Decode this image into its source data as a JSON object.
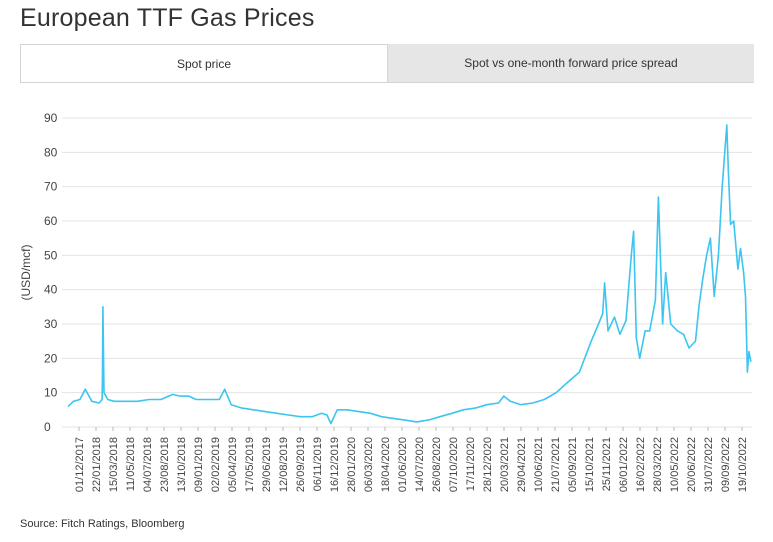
{
  "title": "European TTF Gas Prices",
  "tabs": [
    {
      "label": "Spot price",
      "active": true
    },
    {
      "label": "Spot vs one-month forward price spread",
      "active": false
    }
  ],
  "source": "Source: Fitch Ratings, Bloomberg",
  "colors": {
    "line": "#3cc5f0",
    "grid": "#e3e3e3",
    "tab_inactive": "#e6e6e6"
  },
  "chart_data": {
    "type": "line",
    "ylabel": "(USD/mcf)",
    "ylim": [
      0,
      90
    ],
    "yticks": [
      0,
      10,
      20,
      30,
      40,
      50,
      60,
      70,
      80,
      90
    ],
    "grid": "horizontal",
    "xticks": [
      "01/12/2017",
      "22/01/2018",
      "15/03/2018",
      "11/05/2018",
      "04/07/2018",
      "23/08/2018",
      "13/10/2018",
      "09/01/2019",
      "02/02/2019",
      "05/04/2019",
      "17/05/2019",
      "29/06/2019",
      "12/08/2019",
      "26/09/2019",
      "06/11/2019",
      "16/12/2019",
      "28/01/2020",
      "06/03/2020",
      "18/04/2020",
      "01/06/2020",
      "14/07/2020",
      "26/08/2020",
      "07/10/2020",
      "17/11/2020",
      "28/12/2020",
      "20/03/2021",
      "29/04/2021",
      "10/06/2021",
      "21/07/2021",
      "05/09/2021",
      "15/10/2021",
      "25/11/2021",
      "06/01/2022",
      "16/02/2022",
      "28/03/2022",
      "10/05/2022",
      "20/06/2022",
      "31/07/2022",
      "09/09/2022",
      "19/10/2022"
    ],
    "series": [
      {
        "x": [
          "2017-12-01",
          "2017-12-15",
          "2018-01-01",
          "2018-01-15",
          "2018-02-01",
          "2018-02-20",
          "2018-02-28",
          "2018-03-01",
          "2018-03-02",
          "2018-03-05",
          "2018-03-15",
          "2018-04-01",
          "2018-05-01",
          "2018-06-01",
          "2018-07-01",
          "2018-08-01",
          "2018-09-01",
          "2018-09-20",
          "2018-10-13",
          "2018-11-01",
          "2018-12-01",
          "2019-01-01",
          "2019-01-15",
          "2019-02-01",
          "2019-03-01",
          "2019-04-01",
          "2019-05-01",
          "2019-06-01",
          "2019-07-01",
          "2019-08-01",
          "2019-09-01",
          "2019-09-26",
          "2019-10-10",
          "2019-10-20",
          "2019-11-06",
          "2019-12-01",
          "2020-01-01",
          "2020-02-01",
          "2020-03-01",
          "2020-04-01",
          "2020-05-01",
          "2020-06-01",
          "2020-07-01",
          "2020-08-01",
          "2020-09-01",
          "2020-10-01",
          "2020-11-01",
          "2020-12-01",
          "2021-01-01",
          "2021-01-15",
          "2021-02-01",
          "2021-03-01",
          "2021-04-01",
          "2021-05-01",
          "2021-06-01",
          "2021-07-01",
          "2021-08-01",
          "2021-09-01",
          "2021-09-20",
          "2021-10-01",
          "2021-10-06",
          "2021-10-15",
          "2021-11-01",
          "2021-11-15",
          "2021-12-01",
          "2021-12-15",
          "2021-12-21",
          "2021-12-28",
          "2022-01-06",
          "2022-01-20",
          "2022-02-01",
          "2022-02-16",
          "2022-02-24",
          "2022-03-07",
          "2022-03-15",
          "2022-03-28",
          "2022-04-15",
          "2022-05-01",
          "2022-05-15",
          "2022-06-01",
          "2022-06-10",
          "2022-06-20",
          "2022-06-30",
          "2022-07-10",
          "2022-07-20",
          "2022-07-31",
          "2022-08-10",
          "2022-08-22",
          "2022-08-26",
          "2022-09-01",
          "2022-09-09",
          "2022-09-20",
          "2022-09-27",
          "2022-10-05",
          "2022-10-10",
          "2022-10-15",
          "2022-10-19",
          "2022-10-24"
        ],
        "values": [
          6,
          7.5,
          8,
          11,
          7.5,
          7,
          8,
          16,
          35,
          10,
          8,
          7.5,
          7.5,
          7.5,
          8,
          8,
          9.5,
          9,
          9,
          8,
          8,
          8,
          11,
          6.5,
          5.5,
          5,
          4.5,
          4,
          3.5,
          3,
          3,
          4,
          3.5,
          1,
          5,
          5,
          4.5,
          4,
          3,
          2.5,
          2,
          1.5,
          2,
          3,
          4,
          5,
          5.5,
          6.5,
          7,
          9,
          7.5,
          6.5,
          7,
          8,
          10,
          13,
          16,
          25,
          30,
          33,
          42,
          28,
          32,
          27,
          31,
          50,
          57,
          26,
          20,
          28,
          28,
          37,
          67,
          30,
          45,
          30,
          28,
          27,
          23,
          25,
          35,
          43,
          50,
          55,
          38,
          50,
          70,
          88,
          75,
          59,
          60,
          46,
          52,
          45,
          38,
          16,
          22,
          19
        ]
      }
    ]
  }
}
